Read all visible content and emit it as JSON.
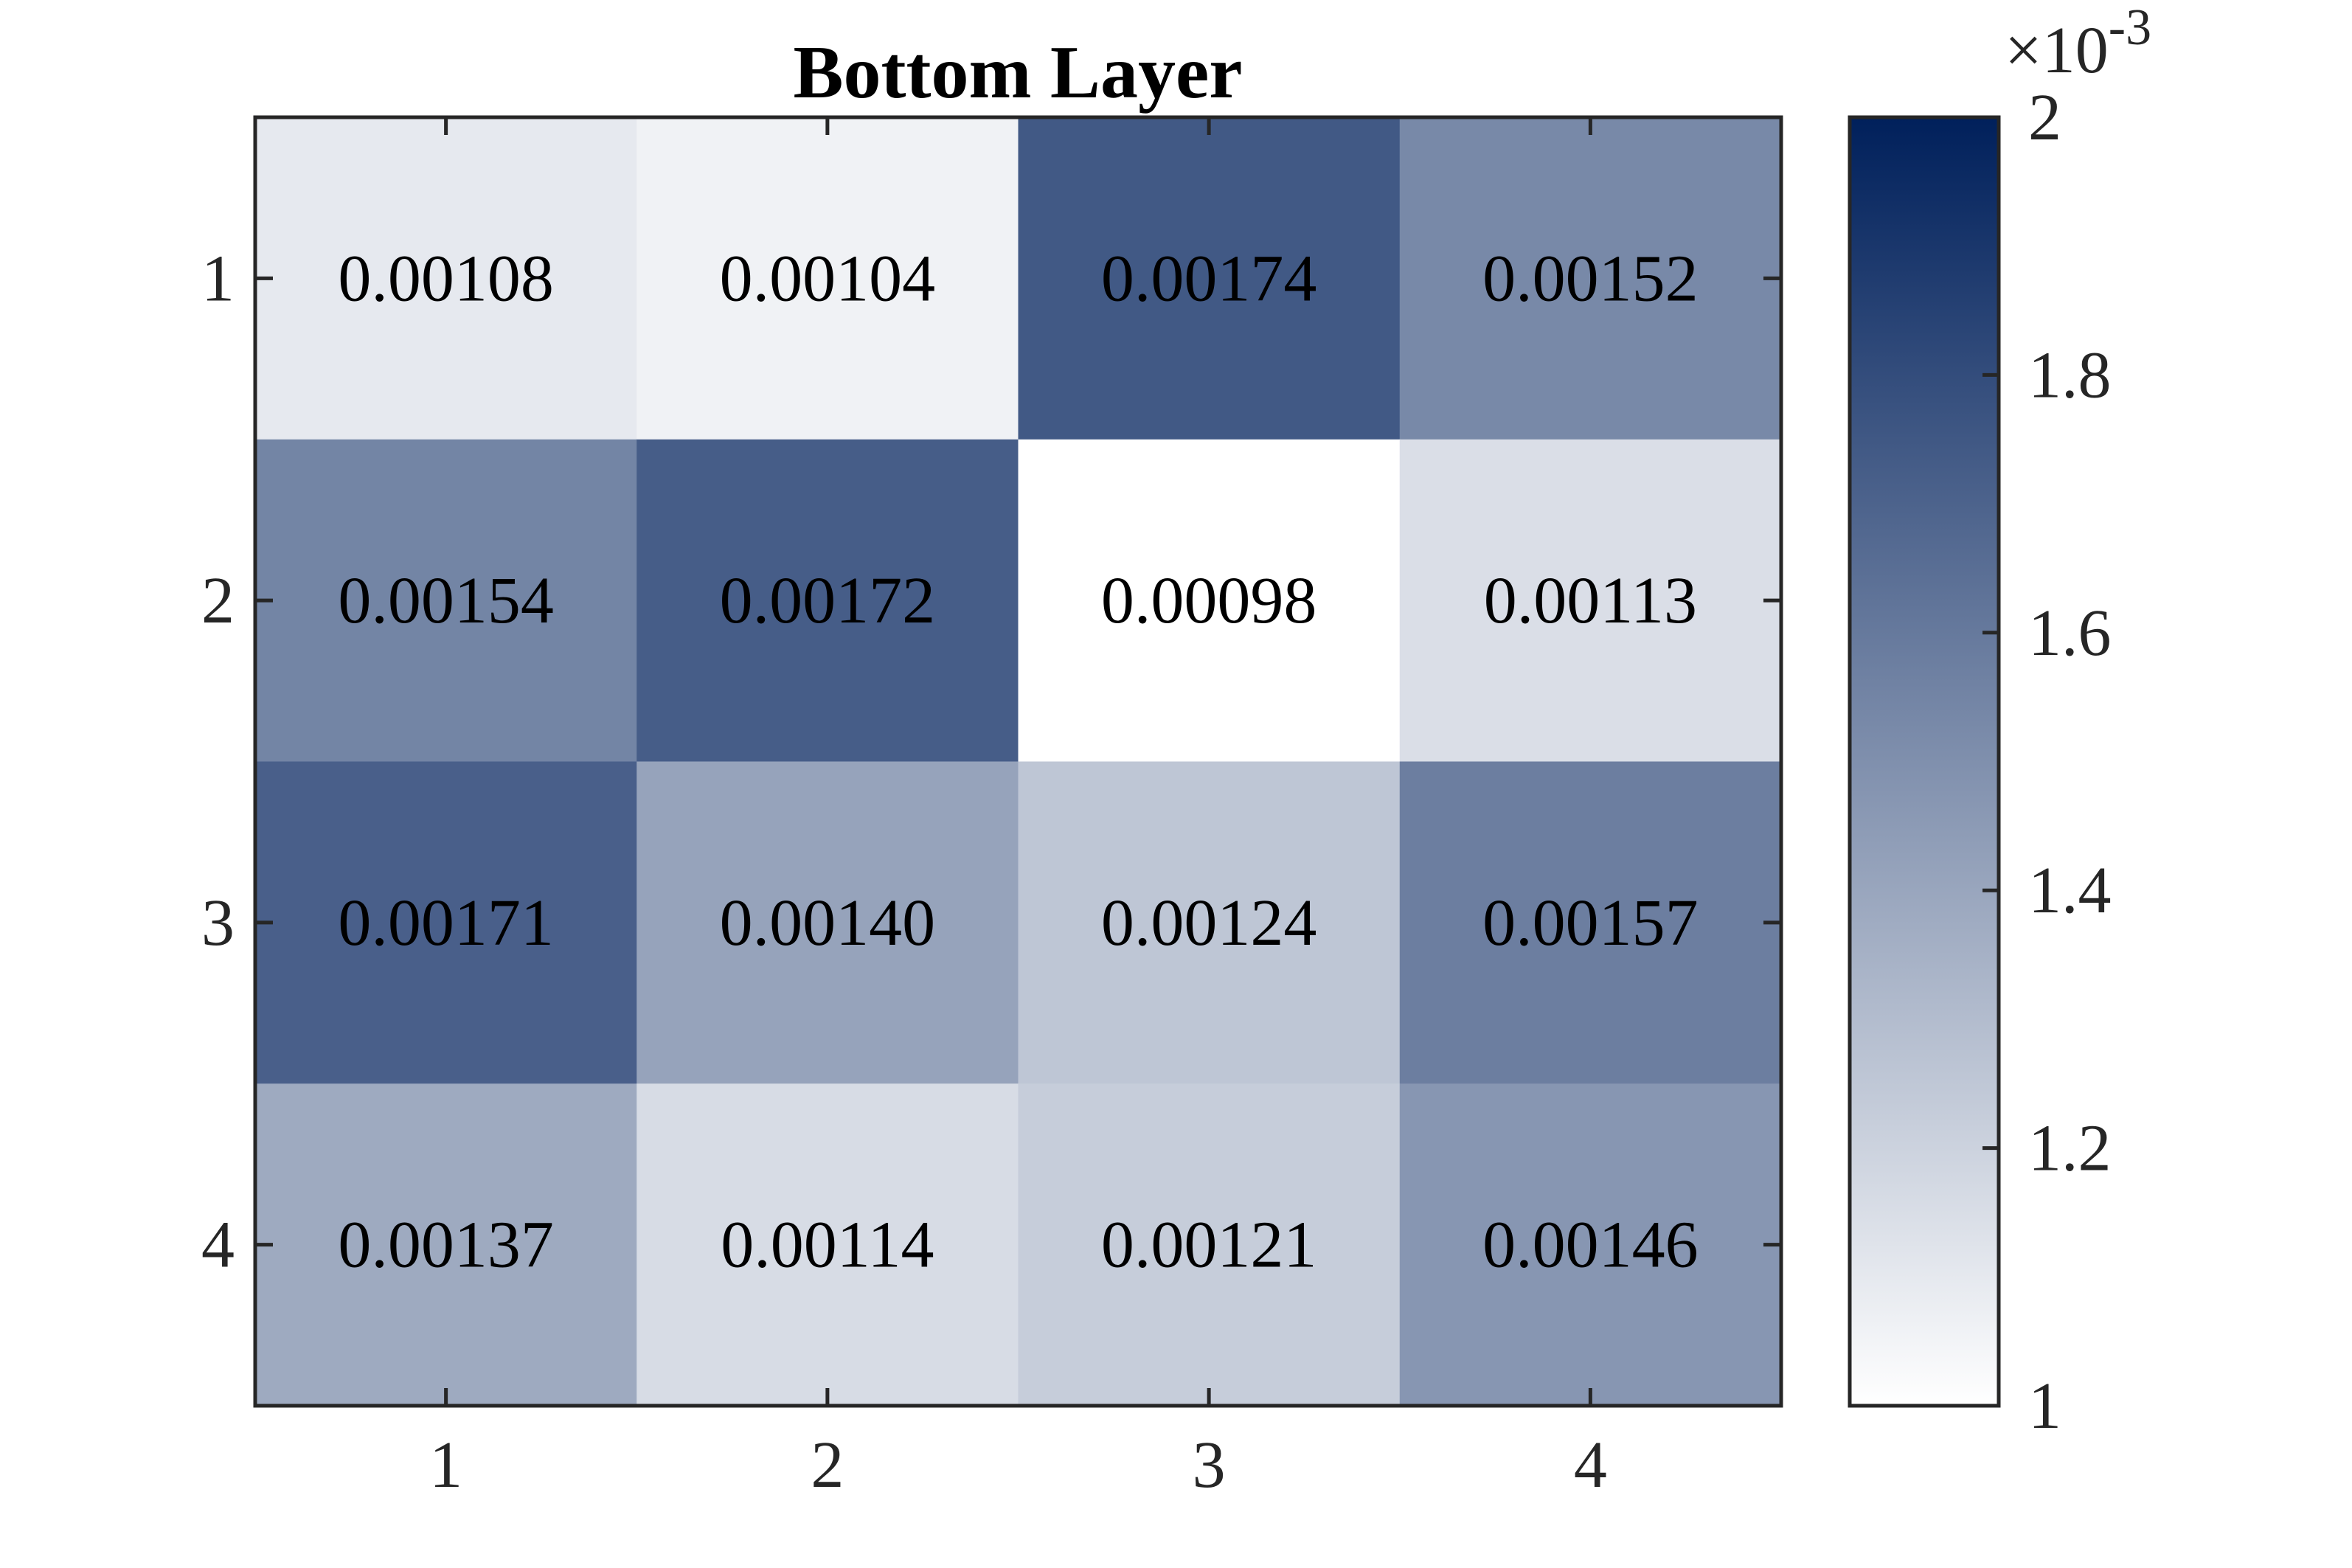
{
  "chart_data": {
    "type": "heatmap",
    "title": "Bottom Layer",
    "x_categories": [
      "1",
      "2",
      "3",
      "4"
    ],
    "y_categories": [
      "1",
      "2",
      "3",
      "4"
    ],
    "values": [
      [
        0.00108,
        0.00104,
        0.00174,
        0.00152
      ],
      [
        0.00154,
        0.00172,
        0.00098,
        0.00113
      ],
      [
        0.00171,
        0.0014,
        0.00124,
        0.00157
      ],
      [
        0.00137,
        0.00114,
        0.00121,
        0.00146
      ]
    ],
    "cell_labels": [
      [
        "0.00108",
        "0.00104",
        "0.00174",
        "0.00152"
      ],
      [
        "0.00154",
        "0.00172",
        "0.00098",
        "0.00113"
      ],
      [
        "0.00171",
        "0.00140",
        "0.00124",
        "0.00157"
      ],
      [
        "0.00137",
        "0.00114",
        "0.00121",
        "0.00146"
      ]
    ],
    "colorbar": {
      "range": [
        0.00098,
        0.002
      ],
      "ticks": [
        1,
        1.2,
        1.4,
        1.6,
        1.8,
        2
      ],
      "tick_labels": [
        "1",
        "1.2",
        "1.4",
        "1.6",
        "1.8",
        "2"
      ],
      "exponent_base": "×10",
      "exponent_power": "-3",
      "scale_factor": 0.001,
      "color_low": "#ffffff",
      "color_high": "#00205b"
    },
    "grid": false
  }
}
